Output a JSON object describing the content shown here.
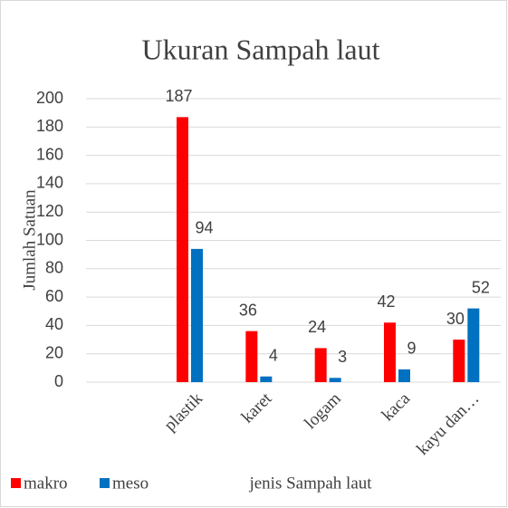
{
  "chart_data": {
    "type": "bar",
    "title": "Ukuran Sampah laut",
    "x_label": "jenis Sampah laut",
    "y_label": "Jumlah Satuan",
    "categories": [
      null,
      "plastik",
      "karet",
      "logam",
      "kaca",
      "kayu dan…"
    ],
    "series": [
      {
        "name": "makro",
        "color": "#ff0000",
        "values": [
          null,
          187,
          36,
          24,
          42,
          30
        ]
      },
      {
        "name": "meso",
        "color": "#0070c0",
        "values": [
          null,
          94,
          4,
          3,
          9,
          52
        ]
      }
    ],
    "ylim": [
      0,
      200
    ],
    "yticks": [
      0,
      20,
      40,
      60,
      80,
      100,
      120,
      140,
      160,
      180,
      200
    ],
    "grid": true,
    "legend": "bottom-left"
  }
}
